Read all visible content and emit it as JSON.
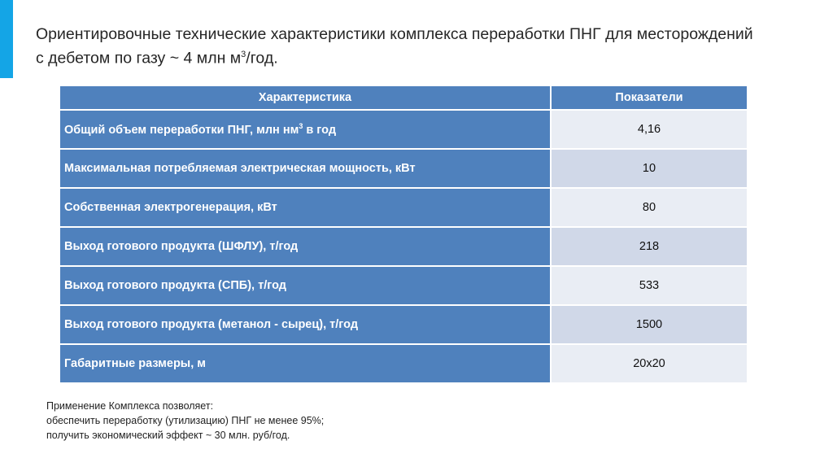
{
  "title": {
    "line1": "Ориентировочные технические характеристики комплекса переработки ПНГ для месторождений",
    "line2_pre": "с дебетом по газу  ~ 4 млн м",
    "line2_sup": "3",
    "line2_post": "/год."
  },
  "table": {
    "headers": [
      "Характеристика",
      "Показатели"
    ],
    "rows": [
      {
        "label": "Общий объем переработки  ПНГ, млн нм",
        "sup": "3",
        "label_post": " в год",
        "value": "4,16"
      },
      {
        "label": "Максимальная потребляемая электрическая мощность, кВт",
        "value": "10"
      },
      {
        "label": "Собственная электрогенерация, кВт",
        "value": "80"
      },
      {
        "label": "Выход готового продукта (ШФЛУ), т/год",
        "value": "218"
      },
      {
        "label": "Выход готового продукта (СПБ), т/год",
        "value": "533"
      },
      {
        "label": "Выход готового продукта (метанол - сырец), т/год",
        "value": "1500"
      },
      {
        "label": "Габаритные размеры, м",
        "value": "20x20"
      }
    ]
  },
  "note": [
    "Применение  Комплекса позволяет:",
    "обеспечить переработку (утилизацию) ПНГ не менее 95%;",
    "получить экономический эффект ~ 30 млн. руб/год."
  ]
}
